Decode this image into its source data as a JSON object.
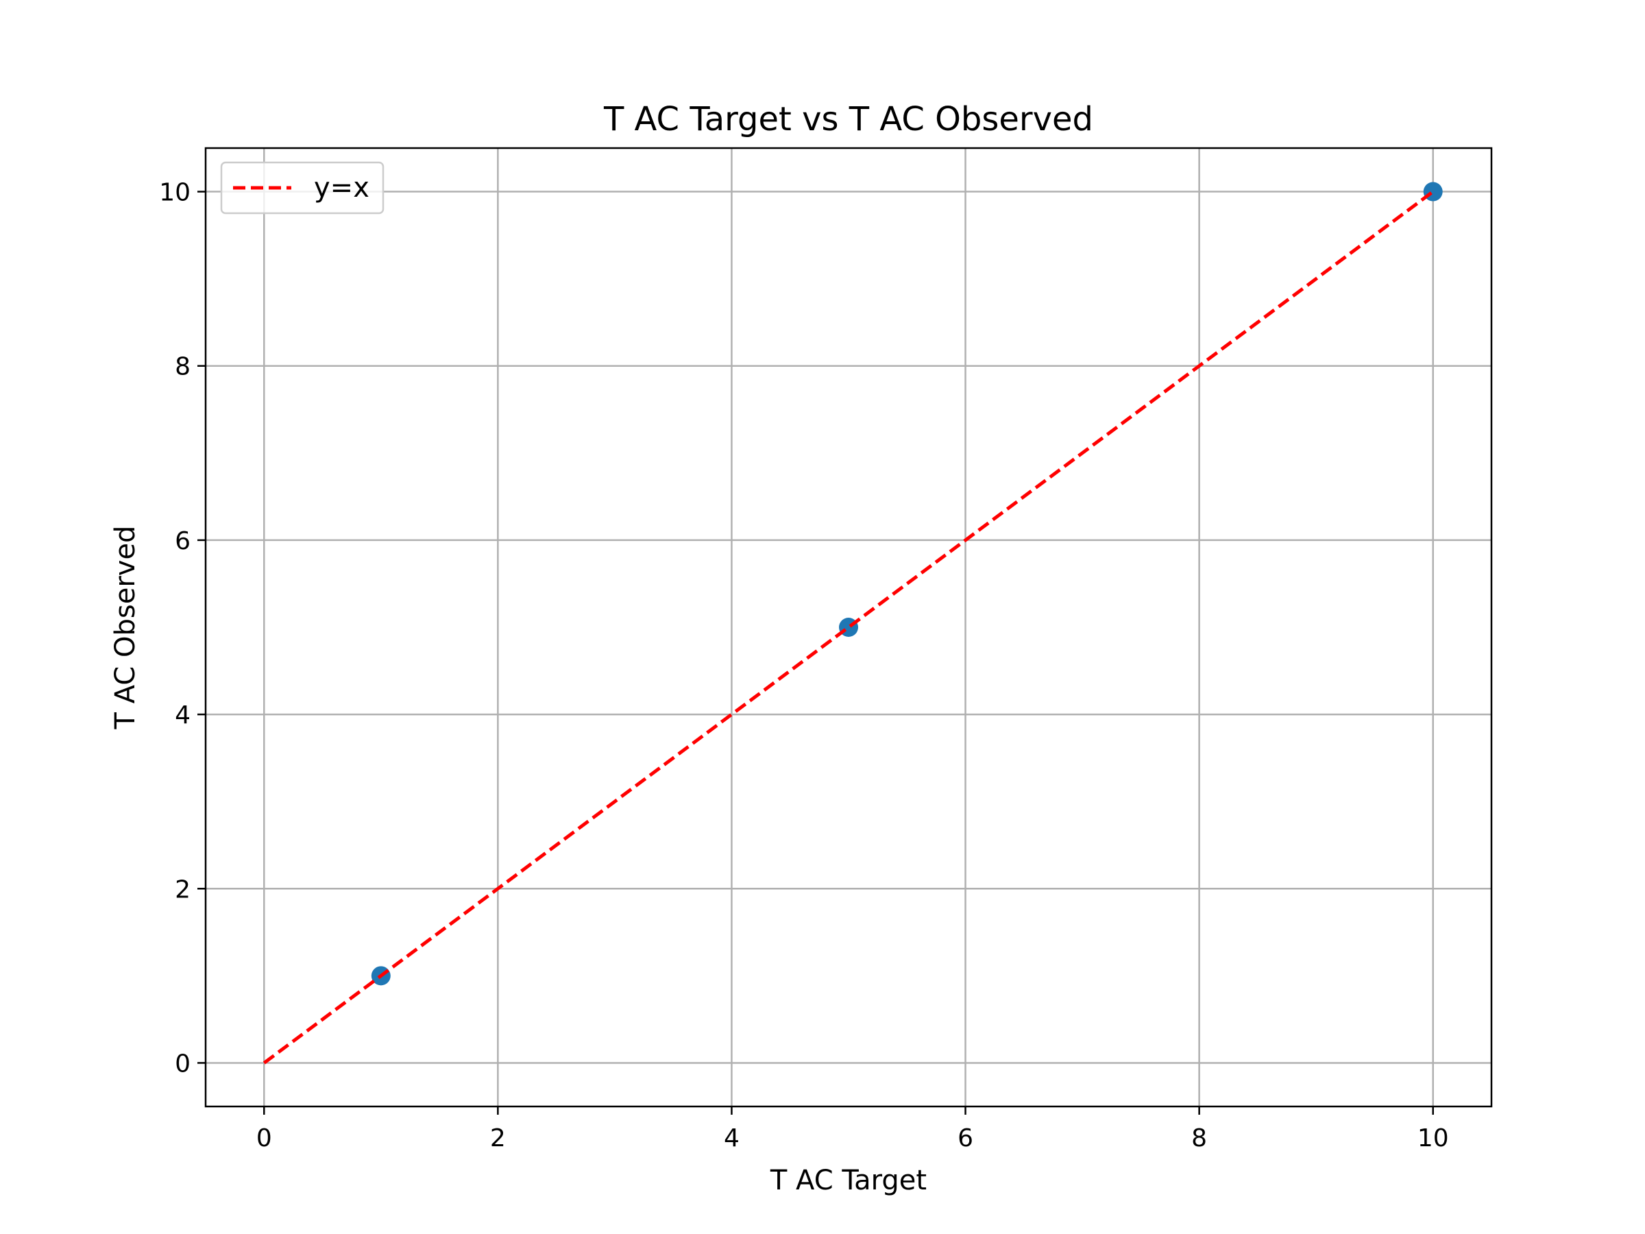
{
  "chart_data": {
    "type": "scatter",
    "title": "T AC Target vs T AC Observed",
    "xlabel": "T AC Target",
    "ylabel": "T AC Observed",
    "xlim": [
      -0.5,
      10.5
    ],
    "ylim": [
      -0.5,
      10.5
    ],
    "xticks": [
      0,
      2,
      4,
      6,
      8,
      10
    ],
    "yticks": [
      0,
      2,
      4,
      6,
      8,
      10
    ],
    "grid": true,
    "legend_position": "upper-left",
    "series": [
      {
        "kind": "scatter",
        "color": "#1f77b4",
        "points": [
          [
            1,
            1
          ],
          [
            5,
            5
          ],
          [
            10,
            10
          ]
        ]
      },
      {
        "kind": "line",
        "name": "y=x",
        "style": "dashed",
        "color": "#ff0000",
        "points": [
          [
            0,
            0
          ],
          [
            10,
            10
          ]
        ]
      }
    ]
  }
}
